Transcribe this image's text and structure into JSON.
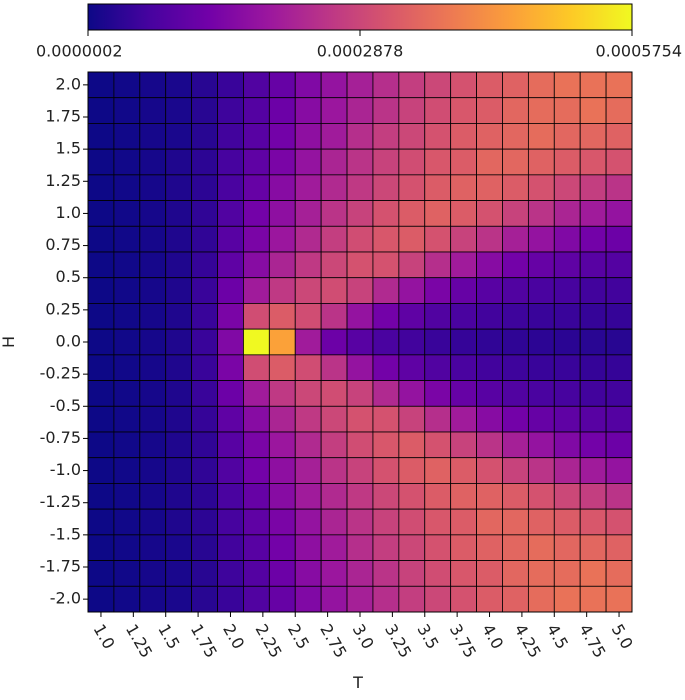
{
  "chart_data": {
    "type": "heatmap",
    "xlabel": "T",
    "ylabel": "H",
    "colormap": "plasma",
    "x": [
      1.0,
      1.2,
      1.4,
      1.6,
      1.8,
      2.0,
      2.2,
      2.4,
      2.6,
      2.8,
      3.0,
      3.2,
      3.4,
      3.6,
      3.8,
      4.0,
      4.2,
      4.4,
      4.6,
      4.8,
      5.0
    ],
    "y": [
      2.0,
      1.8,
      1.6,
      1.4,
      1.2,
      1.0,
      0.8,
      0.6,
      0.4,
      0.2,
      0,
      -0.2,
      -0.4,
      -0.6,
      -0.8,
      -1.0,
      -1.2,
      -1.4,
      -1.6,
      -1.8,
      -2.0
    ],
    "z": [
      [
        2e-07,
        5e-06,
        1e-05,
        1.5e-05,
        3e-05,
        5e-05,
        8e-05,
        0.00011,
        0.00015,
        0.00018,
        0.00021,
        0.00024,
        0.00027,
        0.00029,
        0.00031,
        0.00033,
        0.00034,
        0.00036,
        0.00037,
        0.00037,
        0.00037
      ],
      [
        2e-07,
        5e-06,
        1e-05,
        1.5e-05,
        3e-05,
        5.5e-05,
        8.5e-05,
        0.00012,
        0.00016,
        0.00019,
        0.00022,
        0.00025,
        0.00028,
        0.0003,
        0.00032,
        0.00033,
        0.00035,
        0.00036,
        0.00036,
        0.00037,
        0.00036
      ],
      [
        2e-07,
        5e-06,
        1e-05,
        1.5e-05,
        3e-05,
        6e-05,
        9e-05,
        0.00013,
        0.00017,
        0.0002,
        0.00024,
        0.00027,
        0.00029,
        0.00031,
        0.00033,
        0.00034,
        0.00035,
        0.00036,
        0.00035,
        0.00035,
        0.00034
      ],
      [
        2e-07,
        5e-06,
        1e-05,
        2e-05,
        3.5e-05,
        6.5e-05,
        0.0001,
        0.00014,
        0.00018,
        0.00022,
        0.00025,
        0.00028,
        0.0003,
        0.00032,
        0.00033,
        0.00035,
        0.00035,
        0.00034,
        0.00033,
        0.00032,
        0.00031
      ],
      [
        2e-07,
        5e-06,
        1e-05,
        2e-05,
        3.5e-05,
        7e-05,
        0.00011,
        0.00016,
        0.0002,
        0.00023,
        0.00026,
        0.00029,
        0.00031,
        0.00033,
        0.00034,
        0.00034,
        0.00033,
        0.00031,
        0.00029,
        0.00027,
        0.00025
      ],
      [
        2e-07,
        5e-06,
        1e-05,
        2e-05,
        4e-05,
        8e-05,
        0.00013,
        0.00017,
        0.00021,
        0.00025,
        0.00028,
        0.00031,
        0.00033,
        0.00034,
        0.00033,
        0.00031,
        0.00028,
        0.00025,
        0.00022,
        0.0002,
        0.00018
      ],
      [
        2e-07,
        5e-06,
        1e-05,
        2e-05,
        4e-05,
        9e-05,
        0.00014,
        0.00019,
        0.00023,
        0.00027,
        0.0003,
        0.00032,
        0.00033,
        0.00031,
        0.00028,
        0.00025,
        0.00021,
        0.00018,
        0.00015,
        0.00013,
        0.00012
      ],
      [
        2e-07,
        5e-06,
        1e-05,
        2e-05,
        4.5e-05,
        0.0001,
        0.00016,
        0.00022,
        0.00026,
        0.00029,
        0.00031,
        0.00031,
        0.00028,
        0.00024,
        0.0002,
        0.00016,
        0.00013,
        0.00011,
        0.0001,
        9e-05,
        8.5e-05
      ],
      [
        2e-07,
        5e-06,
        1e-05,
        2e-05,
        5e-05,
        0.00012,
        0.0002,
        0.00026,
        0.00029,
        0.0003,
        0.00028,
        0.00023,
        0.00018,
        0.00014,
        0.00011,
        9e-05,
        8e-05,
        7e-05,
        6.5e-05,
        6e-05,
        6e-05
      ],
      [
        2e-07,
        5e-06,
        1e-05,
        2e-05,
        5e-05,
        0.00014,
        0.0003,
        0.00033,
        0.0003,
        0.00025,
        0.00018,
        0.00013,
        0.0001,
        8e-05,
        7e-05,
        6e-05,
        5.5e-05,
        5e-05,
        5e-05,
        4.5e-05,
        4.5e-05
      ],
      [
        2e-07,
        5e-06,
        1e-05,
        2e-05,
        5e-05,
        0.00015,
        0.000575,
        0.00045,
        0.0002,
        0.00012,
        9e-05,
        7e-05,
        6e-05,
        5e-05,
        4.5e-05,
        4e-05,
        3.8e-05,
        3.5e-05,
        3.3e-05,
        3.2e-05,
        3e-05
      ],
      [
        2e-07,
        5e-06,
        1e-05,
        2e-05,
        5e-05,
        0.00014,
        0.0003,
        0.00033,
        0.0003,
        0.00025,
        0.00018,
        0.00013,
        0.0001,
        8e-05,
        7e-05,
        6e-05,
        5.5e-05,
        5e-05,
        5e-05,
        4.5e-05,
        4.5e-05
      ],
      [
        2e-07,
        5e-06,
        1e-05,
        2e-05,
        5e-05,
        0.00012,
        0.0002,
        0.00026,
        0.00029,
        0.0003,
        0.00028,
        0.00023,
        0.00018,
        0.00014,
        0.00011,
        9e-05,
        8e-05,
        7e-05,
        6.5e-05,
        6e-05,
        6e-05
      ],
      [
        2e-07,
        5e-06,
        1e-05,
        2e-05,
        4.5e-05,
        0.0001,
        0.00016,
        0.00022,
        0.00026,
        0.00029,
        0.00031,
        0.00031,
        0.00028,
        0.00024,
        0.0002,
        0.00016,
        0.00013,
        0.00011,
        0.0001,
        9e-05,
        8.5e-05
      ],
      [
        2e-07,
        5e-06,
        1e-05,
        2e-05,
        4e-05,
        9e-05,
        0.00014,
        0.00019,
        0.00023,
        0.00027,
        0.0003,
        0.00032,
        0.00033,
        0.00031,
        0.00028,
        0.00025,
        0.00021,
        0.00018,
        0.00015,
        0.00013,
        0.00012
      ],
      [
        2e-07,
        5e-06,
        1e-05,
        2e-05,
        4e-05,
        8e-05,
        0.00013,
        0.00017,
        0.00021,
        0.00025,
        0.00028,
        0.00031,
        0.00033,
        0.00034,
        0.00033,
        0.00031,
        0.00028,
        0.00025,
        0.00022,
        0.0002,
        0.00018
      ],
      [
        2e-07,
        5e-06,
        1e-05,
        2e-05,
        3.5e-05,
        7e-05,
        0.00011,
        0.00016,
        0.0002,
        0.00023,
        0.00026,
        0.00029,
        0.00031,
        0.00033,
        0.00034,
        0.00034,
        0.00033,
        0.00031,
        0.00029,
        0.00027,
        0.00025
      ],
      [
        2e-07,
        5e-06,
        1e-05,
        2e-05,
        3.5e-05,
        6.5e-05,
        0.0001,
        0.00014,
        0.00018,
        0.00022,
        0.00025,
        0.00028,
        0.0003,
        0.00032,
        0.00033,
        0.00035,
        0.00035,
        0.00034,
        0.00033,
        0.00032,
        0.00031
      ],
      [
        2e-07,
        5e-06,
        1e-05,
        1.5e-05,
        3e-05,
        6e-05,
        9e-05,
        0.00013,
        0.00017,
        0.0002,
        0.00024,
        0.00027,
        0.00029,
        0.00031,
        0.00033,
        0.00034,
        0.00035,
        0.00036,
        0.00035,
        0.00035,
        0.00034
      ],
      [
        2e-07,
        5e-06,
        1e-05,
        1.5e-05,
        3e-05,
        5.5e-05,
        8.5e-05,
        0.00012,
        0.00016,
        0.00019,
        0.00022,
        0.00025,
        0.00028,
        0.0003,
        0.00032,
        0.00033,
        0.00035,
        0.00036,
        0.00036,
        0.00037,
        0.00036
      ],
      [
        2e-07,
        5e-06,
        1e-05,
        1.5e-05,
        3e-05,
        5e-05,
        8e-05,
        0.00011,
        0.00015,
        0.00018,
        0.00021,
        0.00024,
        0.00027,
        0.00029,
        0.00031,
        0.00033,
        0.00034,
        0.00036,
        0.00037,
        0.00037,
        0.00037
      ]
    ],
    "xlim": [
      0.9,
      5.1
    ],
    "ylim": [
      -2.1,
      2.1
    ],
    "xticks": [
      {
        "value": 1,
        "label": "1.0"
      },
      1.25,
      1.5,
      1.75,
      {
        "value": 2,
        "label": "2.0"
      },
      2.25,
      2.5,
      2.75,
      {
        "value": 3,
        "label": "3.0"
      },
      3.25,
      3.5,
      3.75,
      {
        "value": 4,
        "label": "4.0"
      },
      4.25,
      4.5,
      4.75,
      {
        "value": 5,
        "label": "5.0"
      }
    ],
    "yticks": [
      {
        "value": 2,
        "label": "2.0"
      },
      1.75,
      1.5,
      1.25,
      {
        "value": 1,
        "label": "1.0"
      },
      0.75,
      0.5,
      0.25,
      {
        "value": 0,
        "label": "0.0"
      },
      -0.25,
      -0.5,
      -0.75,
      {
        "value": -1,
        "label": "-1.0"
      },
      -1.25,
      -1.5,
      -1.75,
      {
        "value": -2,
        "label": "-2.0"
      }
    ],
    "zlim": [
      2e-07,
      0.0005754
    ],
    "zticks": [
      {
        "value": 2e-07,
        "label": "0.0000002"
      },
      {
        "value": 0.0002878,
        "label": "0.0002878"
      },
      {
        "value": 0.0005754,
        "label": "0.0005754"
      }
    ]
  }
}
